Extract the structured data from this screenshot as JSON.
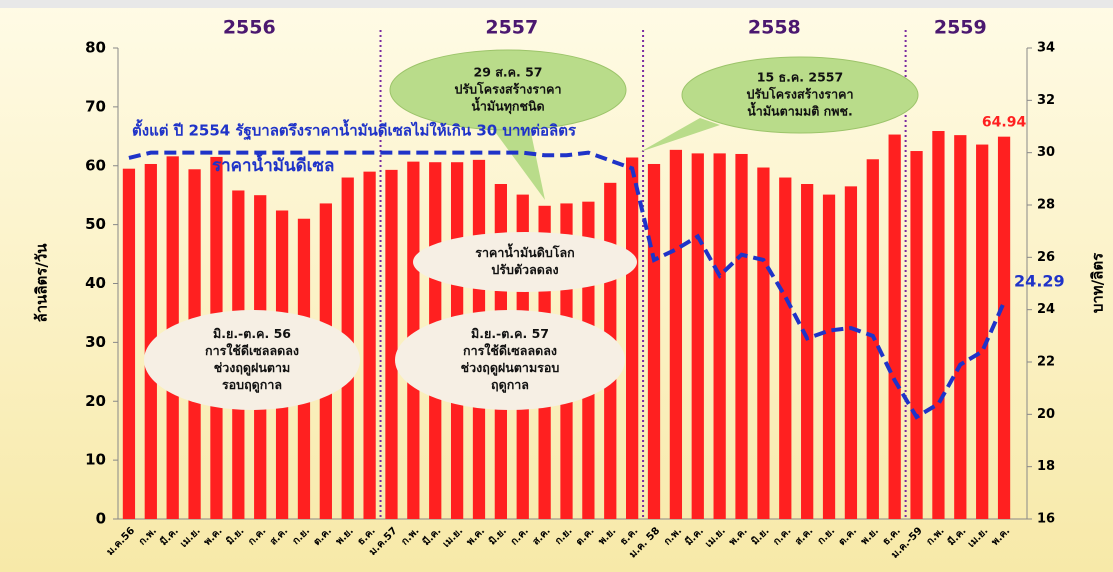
{
  "chart_data": {
    "type": "bar",
    "categories": [
      "ม.ค.56",
      "ก.พ.",
      "มี.ค.",
      "เม.ย.",
      "พ.ค.",
      "มิ.ย.",
      "ก.ค.",
      "ส.ค.",
      "ก.ย.",
      "ต.ค.",
      "พ.ย.",
      "ธ.ค.",
      "ม.ค.57",
      "ก.พ.",
      "มี.ค.",
      "เม.ย.",
      "พ.ค.",
      "มิ.ย.",
      "ก.ค.",
      "ส.ค.",
      "ก.ย.",
      "ต.ค.",
      "พ.ย.",
      "ธ.ค.",
      "ม.ค. 58",
      "ก.พ.",
      "มี.ค.",
      "เม.ย.",
      "พ.ค.",
      "มิ.ย.",
      "ก.ค.",
      "ส.ค.",
      "ก.ย.",
      "ต.ค.",
      "พ.ย.",
      "ธ.ค.",
      "ม.ค.-59",
      "ก.พ.",
      "มี.ค.",
      "เม.ย.",
      "พ.ค."
    ],
    "values": [
      59.5,
      60.3,
      61.6,
      59.4,
      61.5,
      55.8,
      55.0,
      52.4,
      51.0,
      53.6,
      58.0,
      59.0,
      59.3,
      60.7,
      60.6,
      60.6,
      61.0,
      56.9,
      55.1,
      53.2,
      53.6,
      53.9,
      57.1,
      61.4,
      60.3,
      62.7,
      62.1,
      62.1,
      62.0,
      59.7,
      58.0,
      56.9,
      55.1,
      56.5,
      61.1,
      65.3,
      62.5,
      65.9,
      65.2,
      63.6,
      64.94
    ],
    "color": "#ff2020",
    "line": {
      "name": "ราคาน้ำมันดีเซล",
      "color": "#1f33c8",
      "axis": "y2",
      "values": [
        29.8,
        30,
        30,
        30,
        30,
        30,
        30,
        30,
        30,
        30,
        30,
        30,
        30,
        30,
        30,
        30,
        30,
        30,
        30,
        29.9,
        29.9,
        30,
        29.7,
        29.4,
        25.9,
        26.3,
        26.8,
        25.3,
        26.1,
        25.9,
        24.5,
        22.9,
        23.2,
        23.3,
        23.0,
        21.3,
        19.9,
        20.4,
        21.9,
        22.4,
        24.29
      ]
    },
    "ylabel": "ล้านลิตร/วัน",
    "y2label": "บาท/ลิตร",
    "ylim": [
      0,
      80
    ],
    "yticks": [
      0,
      10,
      20,
      30,
      40,
      50,
      60,
      70,
      80
    ],
    "y2lim": [
      16,
      34
    ],
    "y2ticks": [
      16,
      18,
      20,
      22,
      24,
      26,
      28,
      30,
      32,
      34
    ],
    "years": [
      "2556",
      "2557",
      "2558",
      "2559"
    ],
    "headline": "ตั้งแต่ ปี 2554 รัฐบาลตรึงราคาน้ำมันดีเซลไม่ให้เกิน 30 บาทต่อลิตร",
    "callouts": [
      {
        "lines": [
          "29 ส.ค. 57",
          "ปรับโครงสร้างราคา",
          "น้ำมันทุกชนิด"
        ]
      },
      {
        "lines": [
          "15 ธ.ค. 2557",
          "ปรับโครงสร้างราคา",
          "น้ำมันตามมติ กพช."
        ]
      },
      {
        "lines": [
          "ราคาน้ำมันดิบโลก",
          "ปรับตัวลดลง"
        ]
      },
      {
        "lines": [
          "มิ.ย.-ต.ค. 56",
          "การใช้ดีเซลลดลง",
          "ช่วงฤดูฝนตาม",
          "รอบฤดูกาล"
        ]
      },
      {
        "lines": [
          "มิ.ย.-ต.ค. 57",
          "การใช้ดีเซลลดลง",
          "ช่วงฤดูฝนตามรอบ",
          "ฤดูกาล"
        ]
      }
    ]
  }
}
